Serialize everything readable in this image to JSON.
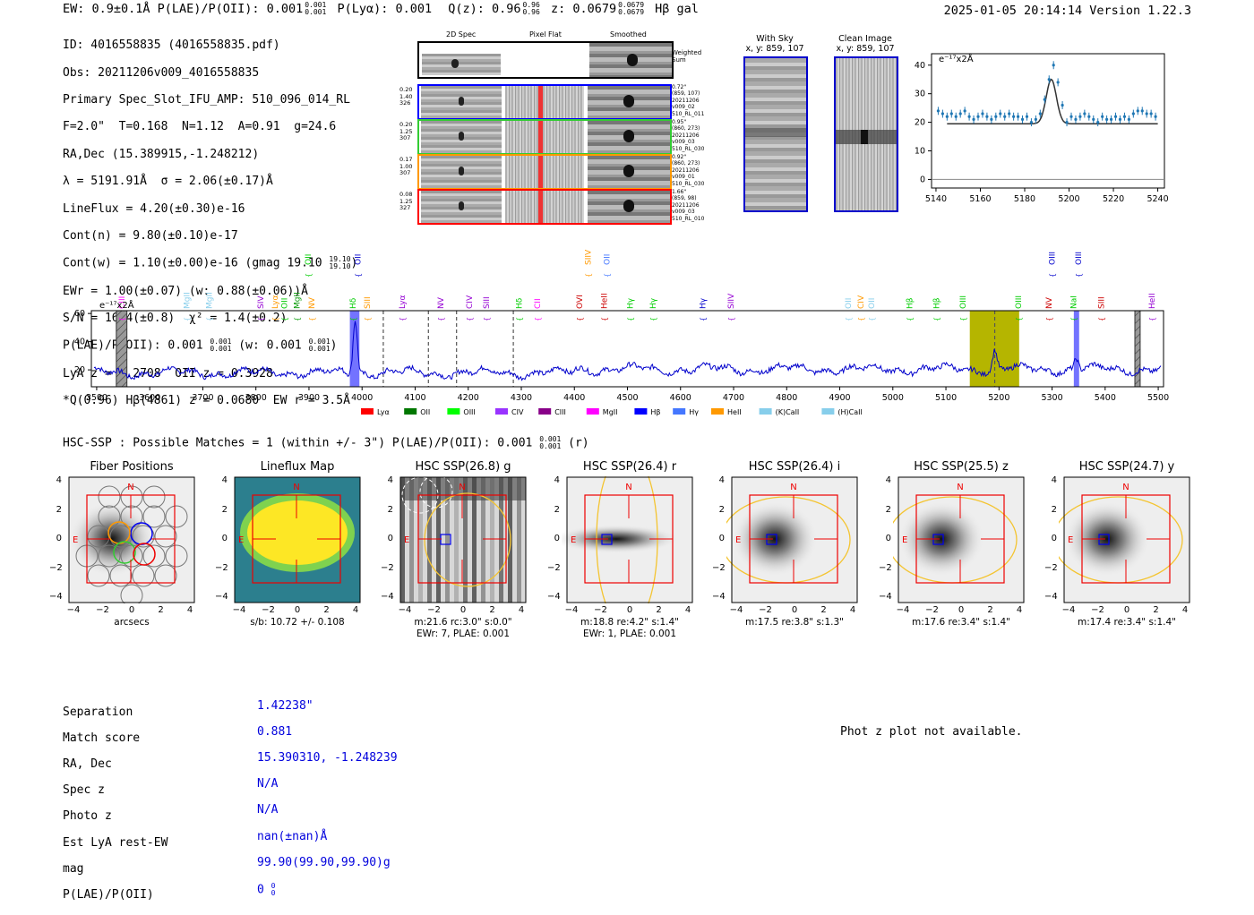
{
  "header": {
    "left": "EW: 0.9±0.1Å  P(LAE)/P(OII): 0.001",
    "left_sup": "0.001",
    "left_sub": "0.001",
    "plya": "P(Lyα): 0.001",
    "qz": "Q(z): 0.96",
    "qz_sup": "0.96",
    "qz_sub": "0.96",
    "z": "z: 0.0679",
    "z_sup": "0.0679",
    "z_sub": "0.0679",
    "tail": "Hβ  gal",
    "datetime": "2025-01-05 20:14:14  Version 1.22.3"
  },
  "details": {
    "line1": "ID: 4016558835 (4016558835.pdf)",
    "line2": "Obs: 20211206v009_4016558835",
    "line3": "Primary Spec_Slot_IFU_AMP: 510_096_014_RL",
    "line4": "F=2.0\"  T=0.168  N=1.12  A=0.91  g=24.6",
    "line5": "RA,Dec (15.389915,-1.248212)",
    "line6": "λ = 5191.91Å  σ = 2.06(±0.17)Å",
    "line7": "LineFlux = 4.20(±0.30)e-16",
    "line8": "Cont(n) = 9.80(±0.10)e-17",
    "line9": "Cont(w) = 1.10(±0.00)e-16 (gmag 19.10",
    "line9_sup": "19.10",
    "line9_sub": "19.10",
    "line10": "EWr = 1.00(±0.07) (w: 0.88(±0.06))Å",
    "line11": "S/N = 16.4(±0.8)  χ² = 1.4(±0.2)",
    "line12": "P(LAE)/P(OII): 0.001",
    "line12_mid": "(w: 0.001",
    "line12_sup": "0.001",
    "line12_sub": "0.001",
    "line13": "LyA z = 3.2708  OII z = 0.3928",
    "line14": "*Q(0.96) Hβ(4861) z = 0.0680  EW r = 3.5Å"
  },
  "cutouts": {
    "col_2d": "2D Spec",
    "col_flat": "Pixel Flat",
    "col_smooth": "Smoothed",
    "weighted": "Weighted Sum",
    "rows": [
      {
        "left": [
          "0.20",
          "1.40",
          "326"
        ],
        "right": [
          "0.72\"",
          "(859, 107)",
          "20211206",
          "v009_02",
          "510_RL_011"
        ],
        "color": "#0000ff"
      },
      {
        "left": [
          "0.20",
          "1.25",
          "307"
        ],
        "right": [
          "0.95\"",
          "(860, 273)",
          "20211206",
          "v009_03",
          "510_RL_030"
        ],
        "color": "#33cc33"
      },
      {
        "left": [
          "0.17",
          "1.00",
          "307"
        ],
        "right": [
          "0.92\"",
          "(860, 273)",
          "20211206",
          "v009_01",
          "510_RL_030"
        ],
        "color": "#ff9900"
      },
      {
        "left": [
          "0.08",
          "1.25",
          "327"
        ],
        "right": [
          "1.66\"",
          "(859, 98)",
          "20211206",
          "v009_03",
          "510_RL_010"
        ],
        "color": "#ff0000"
      }
    ],
    "with_sky": "With Sky",
    "with_sky_xy": "x, y: 859, 107",
    "clean": "Clean Image",
    "clean_xy": "x, y: 859, 107"
  },
  "zoom_chart": {
    "type": "line",
    "unit": "e⁻¹⁷x2Å",
    "xlim": [
      5138,
      5243
    ],
    "ylim": [
      -3,
      44
    ],
    "xticks": [
      5140,
      5160,
      5180,
      5200,
      5220,
      5240
    ],
    "yticks": [
      0,
      10,
      20,
      30,
      40
    ],
    "points_x": [
      5141,
      5143,
      5145,
      5147,
      5149,
      5151,
      5153,
      5155,
      5157,
      5159,
      5161,
      5163,
      5165,
      5167,
      5169,
      5171,
      5173,
      5175,
      5177,
      5179,
      5181,
      5183,
      5185,
      5187,
      5189,
      5191,
      5193,
      5195,
      5197,
      5199,
      5201,
      5203,
      5205,
      5207,
      5209,
      5211,
      5213,
      5215,
      5217,
      5219,
      5221,
      5223,
      5225,
      5227,
      5229,
      5231,
      5233,
      5235,
      5237,
      5239
    ],
    "points_y": [
      24,
      23,
      22,
      23,
      22,
      23,
      24,
      22,
      21,
      22,
      23,
      22,
      21,
      22,
      23,
      22,
      23,
      22,
      22,
      21,
      22,
      20,
      21,
      23,
      28,
      35,
      40,
      34,
      26,
      20,
      22,
      21,
      22,
      23,
      22,
      21,
      20,
      22,
      21,
      21,
      22,
      21,
      22,
      21,
      23,
      24,
      24,
      23,
      23,
      22
    ],
    "fit_center": 5192,
    "fit_sigma": 2.3,
    "fit_base": 19.5,
    "fit_amp": 15.5,
    "fit_range": [
      5145,
      5240
    ]
  },
  "spectrum_chart": {
    "type": "line",
    "unit": "e⁻¹⁷x2Å",
    "xlim": [
      3490,
      5510
    ],
    "ylim": [
      8,
      62
    ],
    "xticks": [
      3500,
      3600,
      3700,
      3800,
      3900,
      4000,
      4100,
      4200,
      4300,
      4400,
      4500,
      4600,
      4700,
      4800,
      4900,
      5000,
      5100,
      5200,
      5300,
      5400,
      5500
    ],
    "yticks": [
      20,
      40,
      60
    ],
    "emission_peaks": [
      {
        "x": 3987,
        "amp": 39,
        "w": 4
      },
      {
        "x": 5192,
        "amp": 13,
        "w": 4
      },
      {
        "x": 5346,
        "amp": 8,
        "w": 4
      }
    ],
    "dashed_lines": [
      4040,
      4125,
      4178,
      4285,
      5192
    ],
    "highlight_bands": [
      {
        "x0": 3977,
        "x1": 3995,
        "color": "#4444ff"
      },
      {
        "x0": 5145,
        "x1": 5238,
        "color": "#b5b500"
      },
      {
        "x0": 5341,
        "x1": 5351,
        "color": "#4444ff"
      }
    ],
    "hatched_bands": [
      {
        "x0": 3537,
        "x1": 3557
      },
      {
        "x0": 5456,
        "x1": 5466
      }
    ],
    "line_labels": [
      {
        "x": 3547,
        "label": "CIII",
        "color": "#ff00ff",
        "row": 3
      },
      {
        "x": 3670,
        "label": "MgII",
        "color": "#87ceeb",
        "row": 3
      },
      {
        "x": 3712,
        "label": "MgII",
        "color": "#87ceeb",
        "row": 3
      },
      {
        "x": 3809,
        "label": "SIV",
        "color": "#9400d3",
        "row": 3
      },
      {
        "x": 3836,
        "label": "Lyα",
        "color": "#ff9900",
        "row": 3
      },
      {
        "x": 3854,
        "label": "OII",
        "color": "#00cc00",
        "row": 3
      },
      {
        "x": 3877,
        "label": "MgII",
        "color": "#009900",
        "row": 3
      },
      {
        "x": 3905,
        "label": "NV",
        "color": "#ff9900",
        "row": 3
      },
      {
        "x": 3898,
        "label": "OII",
        "color": "#00cc00",
        "row": 1
      },
      {
        "x": 3983,
        "label": "Hδ",
        "color": "#00cc00",
        "row": 3
      },
      {
        "x": 3992,
        "label": "OII",
        "color": "#0000cc",
        "row": 1
      },
      {
        "x": 4010,
        "label": "SIII",
        "color": "#ff9900",
        "row": 3
      },
      {
        "x": 4076,
        "label": "Lyα",
        "color": "#9400d3",
        "row": 3
      },
      {
        "x": 4148,
        "label": "NV",
        "color": "#9400d3",
        "row": 3
      },
      {
        "x": 4202,
        "label": "CIV",
        "color": "#9400d3",
        "row": 3
      },
      {
        "x": 4234,
        "label": "SIII",
        "color": "#9400d3",
        "row": 3
      },
      {
        "x": 4296,
        "label": "Hδ",
        "color": "#00cc00",
        "row": 3
      },
      {
        "x": 4330,
        "label": "CII",
        "color": "#ff00ff",
        "row": 3
      },
      {
        "x": 4410,
        "label": "OVI",
        "color": "#cc0000",
        "row": 3
      },
      {
        "x": 4426,
        "label": "SIIV",
        "color": "#ff9900",
        "row": 1
      },
      {
        "x": 4456,
        "label": "HeII",
        "color": "#cc0000",
        "row": 3
      },
      {
        "x": 4461,
        "label": "OII",
        "color": "#4477ff",
        "row": 1
      },
      {
        "x": 4505,
        "label": "Hγ",
        "color": "#00cc00",
        "row": 3
      },
      {
        "x": 4548,
        "label": "Hγ",
        "color": "#00cc00",
        "row": 3
      },
      {
        "x": 4642,
        "label": "Hγ",
        "color": "#0000cc",
        "row": 3
      },
      {
        "x": 4695,
        "label": "SIIV",
        "color": "#9400d3",
        "row": 3
      },
      {
        "x": 4916,
        "label": "OII",
        "color": "#87ceeb",
        "row": 3
      },
      {
        "x": 4940,
        "label": "CIV",
        "color": "#ff9900",
        "row": 3
      },
      {
        "x": 4960,
        "label": "OII",
        "color": "#87ceeb",
        "row": 3
      },
      {
        "x": 5032,
        "label": "Hβ",
        "color": "#00cc00",
        "row": 3
      },
      {
        "x": 5082,
        "label": "Hβ",
        "color": "#00cc00",
        "row": 3
      },
      {
        "x": 5132,
        "label": "OIII",
        "color": "#00cc00",
        "row": 3
      },
      {
        "x": 5237,
        "label": "OIII",
        "color": "#00cc00",
        "row": 3
      },
      {
        "x": 5294,
        "label": "NV",
        "color": "#cc0000",
        "row": 3
      },
      {
        "x": 5300,
        "label": "OIII",
        "color": "#0000cc",
        "row": 1
      },
      {
        "x": 5340,
        "label": "NaI",
        "color": "#00cc00",
        "row": 3
      },
      {
        "x": 5350,
        "label": "OIII",
        "color": "#0000cc",
        "row": 1
      },
      {
        "x": 5393,
        "label": "SIII",
        "color": "#cc0000",
        "row": 3
      },
      {
        "x": 5488,
        "label": "HeII",
        "color": "#9400d3",
        "row": 3
      }
    ],
    "legend": [
      {
        "label": "Lyα",
        "color": "#ff0000"
      },
      {
        "label": "OII",
        "color": "#007700"
      },
      {
        "label": "OIII",
        "color": "#00ff00"
      },
      {
        "label": "CIV",
        "color": "#9933ff"
      },
      {
        "label": "CIII",
        "color": "#880088"
      },
      {
        "label": "MgII",
        "color": "#ff00ff"
      },
      {
        "label": "Hβ",
        "color": "#0000ff"
      },
      {
        "label": "Hγ",
        "color": "#4477ff"
      },
      {
        "label": "HeII",
        "color": "#ff9900"
      },
      {
        "label": "(K)CaII",
        "color": "#87ceeb"
      },
      {
        "label": "(H)CaII",
        "color": "#87ceeb"
      }
    ]
  },
  "hsc": {
    "title": "HSC-SSP : Possible Matches = 1 (within +/- 3\")  P(LAE)/P(OII): 0.001",
    "title_sup": "0.001",
    "title_sub": "0.001",
    "title_tail": "(r)",
    "panels": [
      {
        "title": "Fiber Positions",
        "cap1": "arcsecs",
        "cap2": ""
      },
      {
        "title": "Lineflux Map",
        "cap1": "s/b: 10.72 +/- 0.108",
        "cap2": ""
      },
      {
        "title": "HSC SSP(26.8) g",
        "cap1": "m:21.6 rc:3.0\"  s:0.0\"",
        "cap2": "EWr: 7, PLAE: 0.001"
      },
      {
        "title": "HSC SSP(26.4) r",
        "cap1": "m:18.8  re:4.2\"  s:1.4\"",
        "cap2": "EWr: 1, PLAE: 0.001"
      },
      {
        "title": "HSC SSP(26.4) i",
        "cap1": "m:17.5  re:3.8\"  s:1.3\"",
        "cap2": ""
      },
      {
        "title": "HSC SSP(25.5) z",
        "cap1": "m:17.6  re:3.4\"  s:1.4\"",
        "cap2": ""
      },
      {
        "title": "HSC SSP(24.7) y",
        "cap1": "m:17.4  re:3.4\"  s:1.4\"",
        "cap2": ""
      }
    ],
    "north": "N",
    "east": "E",
    "yticks": [
      "4",
      "2",
      "0",
      "−2",
      "−4"
    ],
    "xticks": [
      "−4",
      "−2",
      "0",
      "2",
      "4"
    ]
  },
  "match": {
    "labels": [
      "Separation",
      "Match score",
      "RA, Dec",
      "Spec z",
      "Photo z",
      "Est LyA rest-EW",
      "mag",
      "P(LAE)/P(OII)"
    ],
    "values": [
      "1.42238\"",
      "0.881",
      "15.390310, -1.248239",
      "N/A",
      "N/A",
      "nan(±nan)Å",
      "99.90(99.90,99.90)g",
      "0"
    ],
    "plae_sup": "0",
    "plae_sub": "0",
    "photz_note": "Phot z plot not available."
  }
}
